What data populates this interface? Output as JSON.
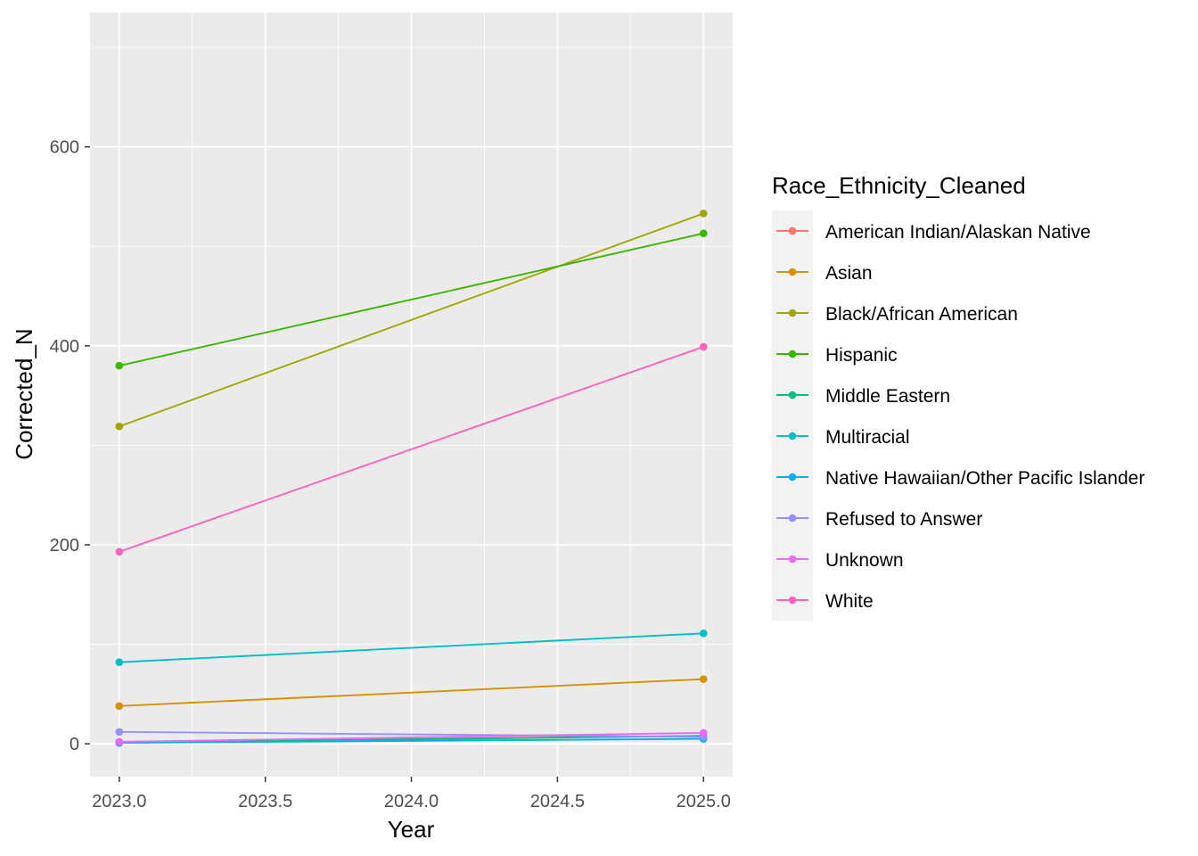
{
  "chart_data": {
    "type": "line",
    "xlabel": "Year",
    "ylabel": "Corrected_N",
    "xlim": [
      2022.9,
      2025.1
    ],
    "ylim": [
      -33,
      735
    ],
    "x_ticks": [
      2023.0,
      2023.5,
      2024.0,
      2024.5,
      2025.0
    ],
    "x_tick_labels": [
      "2023.0",
      "2023.5",
      "2024.0",
      "2024.5",
      "2025.0"
    ],
    "y_ticks": [
      0,
      200,
      400,
      600
    ],
    "y_tick_labels": [
      "0",
      "200",
      "400",
      "600"
    ],
    "grid": true,
    "legend": {
      "title": "Race_Ethnicity_Cleaned",
      "position": "right"
    },
    "x": [
      2023,
      2025
    ],
    "series": [
      {
        "name": "American Indian/Alaskan Native",
        "color": "#F8766D",
        "values": [
          2,
          8
        ]
      },
      {
        "name": "Asian",
        "color": "#D89000",
        "values": [
          38,
          65
        ]
      },
      {
        "name": "Black/African American",
        "color": "#A3A500",
        "values": [
          319,
          533
        ]
      },
      {
        "name": "Hispanic",
        "color": "#39B600",
        "values": [
          380,
          513
        ]
      },
      {
        "name": "Middle Eastern",
        "color": "#00BF7D",
        "values": [
          1,
          8
        ]
      },
      {
        "name": "Multiracial",
        "color": "#00BFC4",
        "values": [
          82,
          111
        ]
      },
      {
        "name": "Native Hawaiian/Other Pacific Islander",
        "color": "#00B0F6",
        "values": [
          1,
          5
        ]
      },
      {
        "name": "Refused to Answer",
        "color": "#9590FF",
        "values": [
          12,
          7
        ]
      },
      {
        "name": "Unknown",
        "color": "#E76BF3",
        "values": [
          2,
          11
        ]
      },
      {
        "name": "White",
        "color": "#FF62BC",
        "values": [
          193,
          399
        ]
      }
    ]
  }
}
